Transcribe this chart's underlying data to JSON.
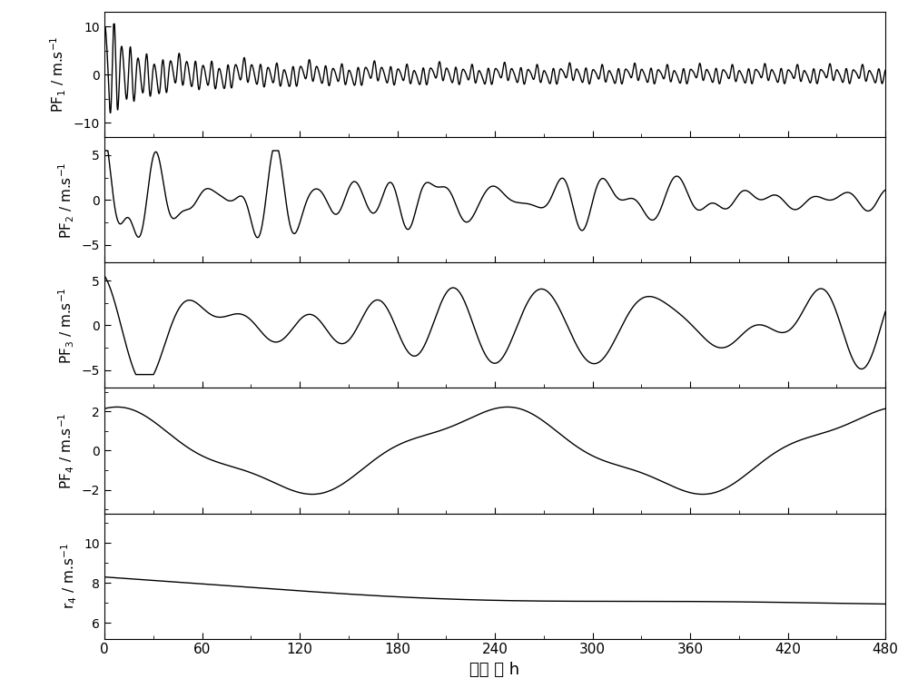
{
  "title": "",
  "xlabel": "时间 ／ h",
  "xlim": [
    0,
    480
  ],
  "xticks": [
    0,
    60,
    120,
    180,
    240,
    300,
    360,
    420,
    480
  ],
  "panels": [
    {
      "ylabel": "PF$_1$ / m.s$^{-1}$",
      "ylim": [
        -13,
        13
      ],
      "yticks": [
        -10,
        0,
        10
      ]
    },
    {
      "ylabel": "PF$_2$ / m.s$^{-1}$",
      "ylim": [
        -7,
        7
      ],
      "yticks": [
        -5,
        0,
        5
      ]
    },
    {
      "ylabel": "PF$_3$ / m.s$^{-1}$",
      "ylim": [
        -7,
        7
      ],
      "yticks": [
        -5,
        0,
        5
      ]
    },
    {
      "ylabel": "PF$_4$ / m.s$^{-1}$",
      "ylim": [
        -3.2,
        3.2
      ],
      "yticks": [
        -2,
        0,
        2
      ]
    },
    {
      "ylabel": "r$_4$ / m.s$^{-1}$",
      "ylim": [
        5.2,
        11.5
      ],
      "yticks": [
        6,
        8,
        10
      ]
    }
  ],
  "line_color": "#000000",
  "line_width": 1.0,
  "background_color": "#ffffff",
  "fig_width": 10.0,
  "fig_height": 7.69,
  "dpi": 100
}
